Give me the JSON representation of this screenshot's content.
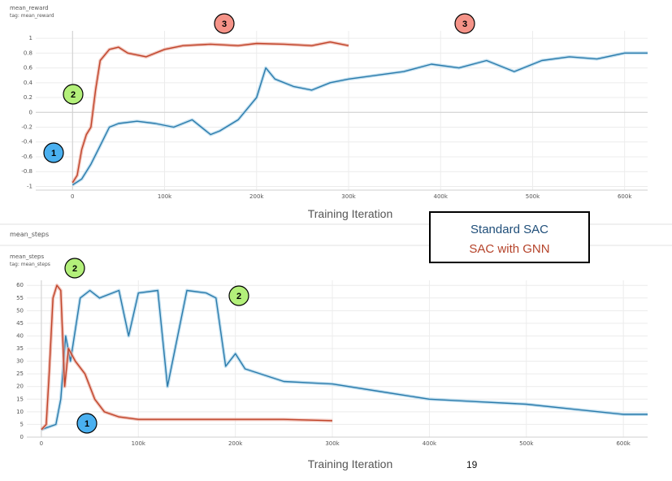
{
  "panels": {
    "top": {
      "title": "mean_reward",
      "tag": "tag: mean_reward",
      "xlabel": "Training Iteration"
    },
    "bottom": {
      "header": "mean_steps",
      "title": "mean_steps",
      "tag": "tag: mean_steps",
      "xlabel": "Training Iteration"
    }
  },
  "legend": {
    "standard": "Standard SAC",
    "gnn": "SAC with GNN"
  },
  "page_number": "19",
  "colors": {
    "standard": "#2b7bab",
    "standard_light": "#a9d3ea",
    "gnn": "#c0442a",
    "gnn_light": "#eaa99c",
    "marker_blue": "#4ab0f0",
    "marker_green": "#b3f07a",
    "marker_red": "#f59388"
  },
  "markers": {
    "top": [
      "1",
      "2",
      "3",
      "3"
    ],
    "bottom": [
      "2",
      "2",
      "1"
    ]
  },
  "chart_data": [
    {
      "type": "line",
      "name": "mean_reward",
      "xlabel": "Training Iteration",
      "ylabel": "",
      "xlim": [
        -40000,
        625000
      ],
      "ylim": [
        -1.05,
        1.1
      ],
      "xticks": [
        0,
        100000,
        200000,
        300000,
        400000,
        500000,
        600000
      ],
      "xtick_labels": [
        "0",
        "100k",
        "200k",
        "300k",
        "400k",
        "500k",
        "600k"
      ],
      "yticks": [
        -1,
        -0.8,
        -0.6,
        -0.4,
        -0.2,
        0,
        0.2,
        0.4,
        0.6,
        0.8,
        1
      ],
      "ytick_labels": [
        "-1",
        "-0.8",
        "-0.6",
        "-0.4",
        "-0.2",
        "0",
        "0.2",
        "0.4",
        "0.6",
        "0.8",
        "1"
      ],
      "grid": true,
      "series": [
        {
          "name": "SAC with GNN",
          "x": [
            0,
            5000,
            10000,
            15000,
            20000,
            25000,
            30000,
            40000,
            50000,
            60000,
            80000,
            100000,
            120000,
            150000,
            180000,
            200000,
            230000,
            260000,
            280000,
            300000
          ],
          "y": [
            -0.95,
            -0.85,
            -0.5,
            -0.3,
            -0.2,
            0.3,
            0.7,
            0.85,
            0.88,
            0.8,
            0.75,
            0.85,
            0.9,
            0.92,
            0.9,
            0.93,
            0.92,
            0.9,
            0.95,
            0.9
          ]
        },
        {
          "name": "Standard SAC",
          "x": [
            0,
            10000,
            20000,
            30000,
            40000,
            50000,
            70000,
            90000,
            110000,
            130000,
            150000,
            160000,
            180000,
            200000,
            210000,
            220000,
            240000,
            260000,
            280000,
            300000,
            330000,
            360000,
            390000,
            420000,
            450000,
            480000,
            510000,
            540000,
            570000,
            600000,
            625000
          ],
          "y": [
            -0.98,
            -0.9,
            -0.7,
            -0.45,
            -0.2,
            -0.15,
            -0.12,
            -0.15,
            -0.2,
            -0.1,
            -0.3,
            -0.25,
            -0.1,
            0.2,
            0.6,
            0.45,
            0.35,
            0.3,
            0.4,
            0.45,
            0.5,
            0.55,
            0.65,
            0.6,
            0.7,
            0.55,
            0.7,
            0.75,
            0.72,
            0.8,
            0.8
          ]
        }
      ]
    },
    {
      "type": "line",
      "name": "mean_steps",
      "xlabel": "Training Iteration",
      "ylabel": "",
      "xlim": [
        -15000,
        625000
      ],
      "ylim": [
        0,
        62
      ],
      "xticks": [
        0,
        100000,
        200000,
        300000,
        400000,
        500000,
        600000
      ],
      "xtick_labels": [
        "0",
        "100k",
        "200k",
        "300k",
        "400k",
        "500k",
        "600k"
      ],
      "yticks": [
        0,
        5,
        10,
        15,
        20,
        25,
        30,
        35,
        40,
        45,
        50,
        55,
        60
      ],
      "ytick_labels": [
        "0",
        "5",
        "10",
        "15",
        "20",
        "25",
        "30",
        "35",
        "40",
        "45",
        "50",
        "55",
        "60"
      ],
      "grid": true,
      "series": [
        {
          "name": "SAC with GNN",
          "x": [
            0,
            5000,
            8000,
            12000,
            16000,
            20000,
            24000,
            28000,
            35000,
            45000,
            55000,
            65000,
            80000,
            100000,
            150000,
            200000,
            250000,
            300000
          ],
          "y": [
            3,
            5,
            25,
            55,
            60,
            58,
            20,
            35,
            30,
            25,
            15,
            10,
            8,
            7,
            7,
            7,
            7,
            6.5
          ]
        },
        {
          "name": "Standard SAC",
          "x": [
            0,
            15000,
            20000,
            25000,
            30000,
            40000,
            50000,
            60000,
            80000,
            90000,
            100000,
            120000,
            130000,
            150000,
            170000,
            180000,
            190000,
            200000,
            210000,
            250000,
            300000,
            350000,
            400000,
            450000,
            500000,
            550000,
            600000,
            625000
          ],
          "y": [
            3,
            5,
            15,
            40,
            30,
            55,
            58,
            55,
            58,
            40,
            57,
            58,
            20,
            58,
            57,
            55,
            28,
            33,
            27,
            22,
            21,
            18,
            15,
            14,
            13,
            11,
            9,
            9
          ]
        }
      ]
    }
  ]
}
